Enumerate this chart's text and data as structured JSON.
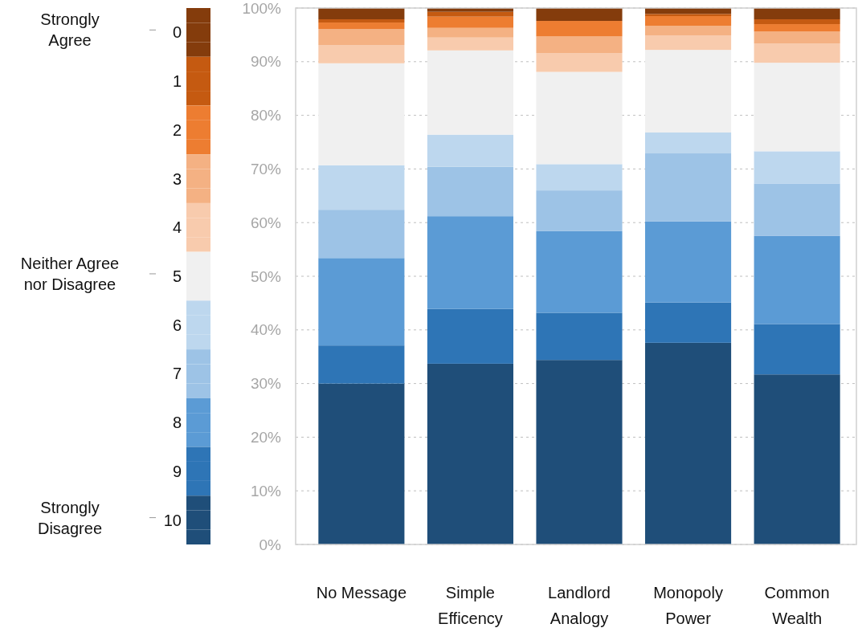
{
  "chart_data": {
    "type": "bar",
    "stacked": true,
    "categories": [
      "No Message",
      "Simple Efficency",
      "Landlord Analogy",
      "Monopoly Power",
      "Common Wealth"
    ],
    "series": [
      {
        "name": "10",
        "color": "#1f4e79",
        "values": [
          30,
          33.7,
          34.4,
          37.6,
          31.7
        ]
      },
      {
        "name": "9",
        "color": "#2e75b6",
        "values": [
          7.1,
          10.2,
          8.8,
          7.5,
          9.4
        ]
      },
      {
        "name": "8",
        "color": "#5b9bd5",
        "values": [
          16.3,
          17.3,
          15.2,
          15.1,
          16.4
        ]
      },
      {
        "name": "7",
        "color": "#9dc3e6",
        "values": [
          9.0,
          9.2,
          7.6,
          12.7,
          9.8
        ]
      },
      {
        "name": "6",
        "color": "#bdd7ee",
        "values": [
          8.3,
          6.0,
          4.9,
          3.9,
          6.0
        ]
      },
      {
        "name": "5",
        "color": "#f0f0f0",
        "values": [
          19.0,
          15.7,
          17.2,
          15.4,
          16.5
        ]
      },
      {
        "name": "4",
        "color": "#f8cbad",
        "values": [
          3.4,
          2.4,
          3.5,
          2.7,
          3.6
        ]
      },
      {
        "name": "3",
        "color": "#f4b183",
        "values": [
          3.0,
          1.8,
          3.1,
          1.8,
          2.2
        ]
      },
      {
        "name": "2",
        "color": "#ed7d31",
        "values": [
          1.2,
          2.1,
          2.9,
          1.8,
          1.4
        ]
      },
      {
        "name": "1",
        "color": "#c55a11",
        "values": [
          0.6,
          0.9,
          0,
          0.4,
          0.9
        ]
      },
      {
        "name": "0",
        "color": "#843c0c",
        "values": [
          2.1,
          0.7,
          2.4,
          1.1,
          2.1
        ]
      }
    ],
    "ylim": [
      0,
      100
    ],
    "yticks": [
      {
        "value": 0,
        "label": "0%"
      },
      {
        "value": 10,
        "label": "10%"
      },
      {
        "value": 20,
        "label": "20%"
      },
      {
        "value": 30,
        "label": "30%"
      },
      {
        "value": 40,
        "label": "40%"
      },
      {
        "value": 50,
        "label": "50%"
      },
      {
        "value": 60,
        "label": "60%"
      },
      {
        "value": 70,
        "label": "70%"
      },
      {
        "value": 80,
        "label": "80%"
      },
      {
        "value": 90,
        "label": "90%"
      },
      {
        "value": 100,
        "label": "100%"
      }
    ],
    "grid": "y",
    "legend": "left",
    "annotations": [
      "Strongly Agree",
      "Neither Agree nor Disagree",
      "Strongly Disagree"
    ]
  }
}
